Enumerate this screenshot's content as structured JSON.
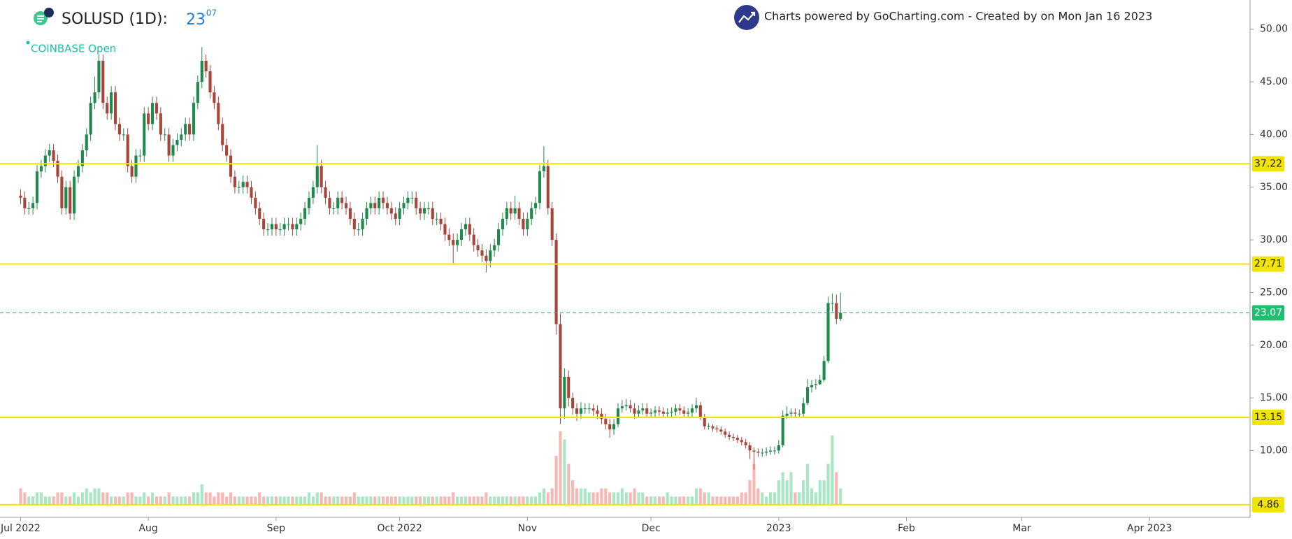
{
  "chart_data": {
    "type": "candlestick",
    "title": "SOLUSD (1D):",
    "price_int": "23",
    "price_dec": ".07",
    "exchange": "COINBASE Open",
    "credit": "Charts powered by GoCharting.com - Created by  on Mon Jan 16 2023",
    "up_color": "#1f8a4c",
    "down_color": "#a8453b",
    "volume_up_color": "#a8e6c4",
    "volume_down_color": "#f7b8b4",
    "open": [
      34.2,
      34,
      33,
      33,
      33.5,
      36.5,
      37,
      38,
      38.5,
      37.5,
      36,
      33,
      35,
      32.5,
      36,
      37,
      38.5,
      40,
      43,
      44,
      47,
      43,
      42,
      44,
      41,
      40,
      40,
      37,
      36,
      38,
      38,
      42,
      41,
      43,
      42,
      40,
      40,
      38,
      39,
      39.5,
      40,
      41,
      40,
      43,
      45,
      47,
      46,
      44,
      43,
      41,
      39,
      38,
      36,
      35,
      35,
      35.5,
      35,
      34,
      33,
      32,
      31,
      31,
      31.5,
      31,
      31,
      31.5,
      31.5,
      31,
      31.5,
      32,
      33,
      34,
      35,
      37,
      35,
      34,
      33,
      33,
      34,
      33.5,
      33,
      32,
      31,
      31,
      32,
      33,
      33.5,
      33,
      34,
      33.5,
      33,
      32.5,
      32,
      33,
      33.5,
      34,
      34,
      33,
      32.5,
      33,
      33,
      32,
      32,
      31.5,
      30.5,
      30,
      29.5,
      30,
      31,
      31.5,
      30.5,
      29.5,
      29,
      28.5,
      28,
      29,
      29.5,
      31,
      32,
      33,
      32.5,
      33,
      32,
      31,
      32,
      33,
      33.5,
      36.5,
      37,
      33,
      30,
      22,
      14,
      17,
      15,
      14,
      13.5,
      14,
      14,
      14,
      13.8,
      13.5,
      13,
      12.5,
      12,
      12.5,
      14,
      14.2,
      14.3,
      14,
      13.5,
      13.8,
      14,
      13.5,
      13.6,
      13.8,
      13.7,
      13.5,
      13.6,
      13.7,
      14,
      13.8,
      13.5,
      13.6,
      14,
      14.3,
      13.2,
      12.3,
      12.3,
      12.1,
      12,
      11.8,
      11.5,
      11.3,
      11.2,
      11,
      10.8,
      10.5,
      10,
      9.9,
      9.8,
      9.8,
      9.9,
      10,
      10,
      10.5,
      13.3,
      13.5,
      13.6,
      13.5,
      13.5,
      14.5,
      16,
      16.2,
      16.3,
      16.7,
      18.5,
      24,
      24,
      22.5
    ],
    "high": [
      34.8,
      34.6,
      33.6,
      34.1,
      37.1,
      37.6,
      38.6,
      39.1,
      39.1,
      38.1,
      36.6,
      35.6,
      35.6,
      36.6,
      37.6,
      39.1,
      40.6,
      43.6,
      45.5,
      47.6,
      47.6,
      43.6,
      44.6,
      44.6,
      41.6,
      40.6,
      40.6,
      37.6,
      38.6,
      38.6,
      42.6,
      42.6,
      43.6,
      43.6,
      42.6,
      40.6,
      40.6,
      39.6,
      40.1,
      40.6,
      41.6,
      41.6,
      43.6,
      45.6,
      48.3,
      47.6,
      46.6,
      44.6,
      43.6,
      41.6,
      39.6,
      38.6,
      36.6,
      35.6,
      36.1,
      36.1,
      35.6,
      34.6,
      33.6,
      32.6,
      31.6,
      32.1,
      32.1,
      31.6,
      32.1,
      32.1,
      32.1,
      32.1,
      32.6,
      33.6,
      34.6,
      35.6,
      39,
      37.6,
      35.6,
      34.6,
      33.6,
      34.6,
      34.6,
      34.1,
      33.6,
      32.6,
      31.6,
      32.6,
      33.6,
      34.1,
      34.1,
      34.6,
      34.6,
      34.1,
      33.6,
      33.1,
      33.6,
      34.1,
      34.6,
      34.6,
      34.6,
      33.6,
      33.6,
      33.6,
      33.6,
      32.6,
      32.6,
      32.1,
      31.1,
      30.6,
      30.6,
      31.6,
      32.1,
      32.1,
      31.1,
      30.1,
      29.6,
      29.1,
      29.6,
      30.1,
      31.6,
      32.6,
      33.6,
      33.6,
      34.2,
      33.6,
      32.6,
      32.6,
      33.6,
      34.1,
      37.1,
      38.9,
      37.6,
      33.6,
      30.6,
      23,
      17.8,
      17.6,
      15.5,
      14.5,
      14.6,
      14.5,
      14.5,
      14.4,
      14.3,
      14,
      13.5,
      13,
      13,
      14.5,
      14.8,
      14.9,
      14.8,
      14.5,
      14.3,
      14.5,
      14.5,
      14,
      14.2,
      14.2,
      14.1,
      14,
      14.1,
      14.4,
      14.4,
      14.2,
      14,
      14.4,
      15,
      14.6,
      13.5,
      12.6,
      12.5,
      12.4,
      12.3,
      12.1,
      11.8,
      11.6,
      11.5,
      11.3,
      11.1,
      10.8,
      10.3,
      10.2,
      10.2,
      10.3,
      10.4,
      10.4,
      11,
      13.8,
      14.2,
      14,
      14,
      13.9,
      15,
      16.8,
      16.7,
      16.8,
      17.2,
      19,
      24.6,
      24.9,
      24.8,
      25
    ],
    "low": [
      33.4,
      32.4,
      32.4,
      32.4,
      32.9,
      35.9,
      36.4,
      37.4,
      36.9,
      35.4,
      32.4,
      32.4,
      31.9,
      31.9,
      35.4,
      36.4,
      37.9,
      39.4,
      42.4,
      43.4,
      42.4,
      41.4,
      41.4,
      40.4,
      39.4,
      39.4,
      36.4,
      35.4,
      35.4,
      37.4,
      37.4,
      40.4,
      40.4,
      41.4,
      39.4,
      39.4,
      37.4,
      37.4,
      38.4,
      38.9,
      39.4,
      39.4,
      39.4,
      42.4,
      44.4,
      45.4,
      43.4,
      42.4,
      40.4,
      38.4,
      37.4,
      35.4,
      34.4,
      34.4,
      34.4,
      34.4,
      33.4,
      32.4,
      31.4,
      30.4,
      30.4,
      30.4,
      30.4,
      30.4,
      30.4,
      30.9,
      30.4,
      30.4,
      30.9,
      31.4,
      32.4,
      33.4,
      34.4,
      34.4,
      33.4,
      32.4,
      32.4,
      32.4,
      32.9,
      32.4,
      31.4,
      30.4,
      30.4,
      30.4,
      31.4,
      32.4,
      32.4,
      32.4,
      32.9,
      32.4,
      31.9,
      31.4,
      31.4,
      32.4,
      32.9,
      33.4,
      32.4,
      31.9,
      31.9,
      32.4,
      31.4,
      31.4,
      30.9,
      29.9,
      29.4,
      27.8,
      28.9,
      29.4,
      30.4,
      29.9,
      28.9,
      28.4,
      27.9,
      26.9,
      27.4,
      28.4,
      28.9,
      30.4,
      31.4,
      31.9,
      31.9,
      31.4,
      30.4,
      30.4,
      31.4,
      32.4,
      32.9,
      35.9,
      32.4,
      29.4,
      21,
      12.5,
      13,
      14.2,
      13.4,
      12.8,
      13,
      13.5,
      13.5,
      13.3,
      13,
      12.5,
      12,
      11.2,
      11.5,
      12.2,
      13.6,
      13.8,
      13.6,
      13,
      13.2,
      13.4,
      13.1,
      13.1,
      13.2,
      13.3,
      13.1,
      13.1,
      13.2,
      13.3,
      13.4,
      13.1,
      13.1,
      13.2,
      13.6,
      12.9,
      12,
      12,
      11.8,
      11.7,
      11.5,
      11.2,
      11,
      10.9,
      10.7,
      10.5,
      10.2,
      9.2,
      8.2,
      9.4,
      9.4,
      9.5,
      9.6,
      9.6,
      9.7,
      10.3,
      13,
      13.1,
      13.1,
      13.1,
      13.2,
      14.3,
      15.5,
      15.8,
      16.2,
      16.5,
      18.3,
      23.2,
      22,
      22.3
    ],
    "close": [
      34,
      33,
      33,
      33.5,
      36.5,
      37,
      38,
      38.5,
      37.5,
      36,
      33,
      35,
      32.5,
      36,
      37,
      38.5,
      40,
      43,
      44,
      47,
      43,
      42,
      44,
      41,
      40,
      40,
      37,
      36,
      38,
      38,
      42,
      41,
      43,
      42,
      40,
      40,
      38,
      39,
      39.5,
      40,
      41,
      40,
      43,
      45,
      47,
      46,
      44,
      43,
      41,
      39,
      38,
      36,
      35,
      35,
      35.5,
      35,
      34,
      33,
      32,
      31,
      31,
      31.5,
      31,
      31,
      31.5,
      31.5,
      31,
      31.5,
      32,
      33,
      34,
      35,
      37,
      35,
      34,
      33,
      33,
      34,
      33.5,
      33,
      32,
      31,
      31,
      32,
      33,
      33.5,
      33,
      34,
      33.5,
      33,
      32.5,
      32,
      33,
      33.5,
      34,
      34,
      33,
      32.5,
      33,
      33,
      32,
      32,
      31.5,
      30.5,
      30,
      29.5,
      30,
      31,
      31.5,
      30.5,
      29.5,
      29,
      28.5,
      28,
      29,
      29.5,
      31,
      32,
      33,
      32.5,
      33,
      32,
      31,
      32,
      33,
      33.5,
      36.5,
      37,
      33,
      30,
      22,
      14,
      17,
      15,
      14,
      13.5,
      14,
      14,
      14,
      13.8,
      13.5,
      13,
      12.5,
      12,
      12.5,
      14,
      14.2,
      14.3,
      14,
      13.5,
      13.8,
      14,
      13.5,
      13.6,
      13.8,
      13.7,
      13.5,
      13.6,
      13.7,
      14,
      13.8,
      13.5,
      13.6,
      14,
      14.3,
      13.2,
      12.3,
      12.3,
      12.1,
      12,
      11.8,
      11.5,
      11.3,
      11.2,
      11,
      10.8,
      10.5,
      10,
      9.9,
      9.8,
      9.8,
      9.9,
      10,
      10,
      10.5,
      13.3,
      13.5,
      13.6,
      13.5,
      13.5,
      14.5,
      16,
      16.2,
      16.3,
      16.7,
      18.5,
      24,
      24,
      22.5,
      23.07
    ],
    "volume": [
      2,
      1.5,
      1,
      1,
      1.5,
      1.5,
      1,
      1,
      1,
      1.5,
      1.5,
      1,
      1,
      1.5,
      1,
      1.5,
      2,
      1.5,
      2,
      2,
      1.5,
      1.5,
      1,
      1,
      1,
      1,
      1.5,
      1.5,
      1,
      1,
      1.5,
      1,
      1.5,
      1,
      1,
      1,
      1.5,
      1,
      1,
      1,
      1,
      1,
      1.5,
      1.5,
      2.5,
      1.5,
      1.5,
      1,
      1.5,
      1.5,
      1,
      1.5,
      1,
      1,
      1,
      1,
      1,
      1,
      1.5,
      1,
      1,
      1,
      1,
      1,
      1,
      1,
      1,
      1,
      1,
      1,
      1.5,
      1,
      1.5,
      1.5,
      1,
      1,
      1,
      1,
      1,
      1,
      1,
      1.5,
      1,
      1,
      1,
      1,
      1,
      1,
      1,
      1,
      1,
      1,
      1,
      1,
      1,
      1,
      1,
      1,
      1,
      1,
      1,
      1,
      1,
      1,
      1,
      1.5,
      1,
      1,
      1,
      1,
      1,
      1,
      1,
      1.5,
      1,
      1,
      1,
      1,
      1,
      1,
      1,
      1,
      1,
      1,
      1,
      1,
      1.5,
      2,
      1.5,
      2,
      6,
      9,
      8,
      5,
      3,
      2,
      2,
      2,
      1.5,
      1.5,
      1.5,
      2,
      2,
      1.5,
      1.5,
      1.5,
      2,
      1.5,
      1.5,
      2,
      1.5,
      1.5,
      1,
      1,
      1,
      1,
      1,
      1.5,
      1,
      1,
      1,
      1,
      1,
      1,
      2,
      2,
      1.5,
      1.5,
      1,
      1,
      1,
      1,
      1,
      1,
      1,
      1.5,
      1.5,
      3,
      5,
      2,
      1.5,
      1,
      1.5,
      1.5,
      3,
      4,
      3,
      4,
      1.5,
      1.5,
      3,
      5,
      2,
      1.5,
      3,
      3,
      5,
      8.5,
      4,
      2
    ],
    "xlim": [
      -5,
      298.4
    ],
    "xticks": [
      {
        "value": 0,
        "label": "Jul 2022"
      },
      {
        "value": 31,
        "label": "Aug"
      },
      {
        "value": 62,
        "label": "Sep"
      },
      {
        "value": 92,
        "label": "Oct 2022"
      },
      {
        "value": 123,
        "label": "Nov"
      },
      {
        "value": 153,
        "label": "Dec"
      },
      {
        "value": 184,
        "label": "2023"
      },
      {
        "value": 215,
        "label": "Feb"
      },
      {
        "value": 243,
        "label": "Mar"
      },
      {
        "value": 274,
        "label": "Apr 2023"
      }
    ],
    "ylim": [
      3.66,
      52.77
    ],
    "yticks": [
      {
        "value": 10,
        "label": "10.00"
      },
      {
        "value": 15,
        "label": "15.00"
      },
      {
        "value": 20,
        "label": "20.00"
      },
      {
        "value": 25,
        "label": "25.00"
      },
      {
        "value": 30,
        "label": "30.00"
      },
      {
        "value": 35,
        "label": "35.00"
      },
      {
        "value": 40,
        "label": "40.00"
      },
      {
        "value": 45,
        "label": "45.00"
      },
      {
        "value": 50,
        "label": "50.00"
      }
    ],
    "levels": [
      37.22,
      27.71,
      13.15,
      4.86
    ],
    "level_color": "#f0e400",
    "last_price": 23.07,
    "last_price_color": "#1fbf72"
  }
}
